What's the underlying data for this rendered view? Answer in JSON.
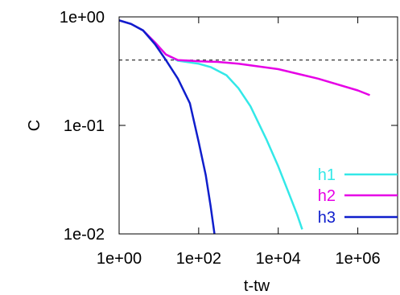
{
  "chart_data": {
    "type": "line",
    "xlabel": "t-tw",
    "ylabel": "C",
    "xscale": "log",
    "yscale": "log",
    "xlim": [
      1,
      10000000.0
    ],
    "ylim": [
      0.01,
      1
    ],
    "grid": false,
    "legend": "bottom-right",
    "x_ticks": [
      {
        "value": 1,
        "label": "1e+00"
      },
      {
        "value": 100,
        "label": "1e+02"
      },
      {
        "value": 10000,
        "label": "1e+04"
      },
      {
        "value": 1000000,
        "label": "1e+06"
      }
    ],
    "y_ticks": [
      {
        "value": 1,
        "label": "1e+00"
      },
      {
        "value": 0.1,
        "label": "1e-01"
      },
      {
        "value": 0.01,
        "label": "1e-02"
      }
    ],
    "reference_line": {
      "y": 0.4,
      "style": "dashed",
      "color": "#000000"
    },
    "series": [
      {
        "name": "h1",
        "color": "#33e8e8",
        "x": [
          1,
          2,
          4,
          8,
          15,
          30,
          60,
          100,
          200,
          500,
          1000,
          2000,
          5000,
          10000,
          20000,
          30000,
          40000
        ],
        "y": [
          0.93,
          0.86,
          0.75,
          0.58,
          0.45,
          0.395,
          0.38,
          0.37,
          0.345,
          0.29,
          0.22,
          0.15,
          0.075,
          0.042,
          0.022,
          0.015,
          0.011
        ]
      },
      {
        "name": "h2",
        "color": "#e600e6",
        "x": [
          1,
          2,
          4,
          8,
          15,
          30,
          60,
          100,
          300,
          1000,
          10000,
          100000,
          1000000,
          2000000
        ],
        "y": [
          0.93,
          0.86,
          0.75,
          0.58,
          0.45,
          0.4,
          0.395,
          0.39,
          0.385,
          0.37,
          0.33,
          0.27,
          0.21,
          0.19
        ]
      },
      {
        "name": "h3",
        "color": "#0f1ecc",
        "x": [
          1,
          2,
          4,
          8,
          15,
          30,
          60,
          100,
          150,
          200,
          250
        ],
        "y": [
          0.93,
          0.86,
          0.75,
          0.56,
          0.4,
          0.27,
          0.16,
          0.07,
          0.035,
          0.018,
          0.01
        ]
      }
    ]
  }
}
